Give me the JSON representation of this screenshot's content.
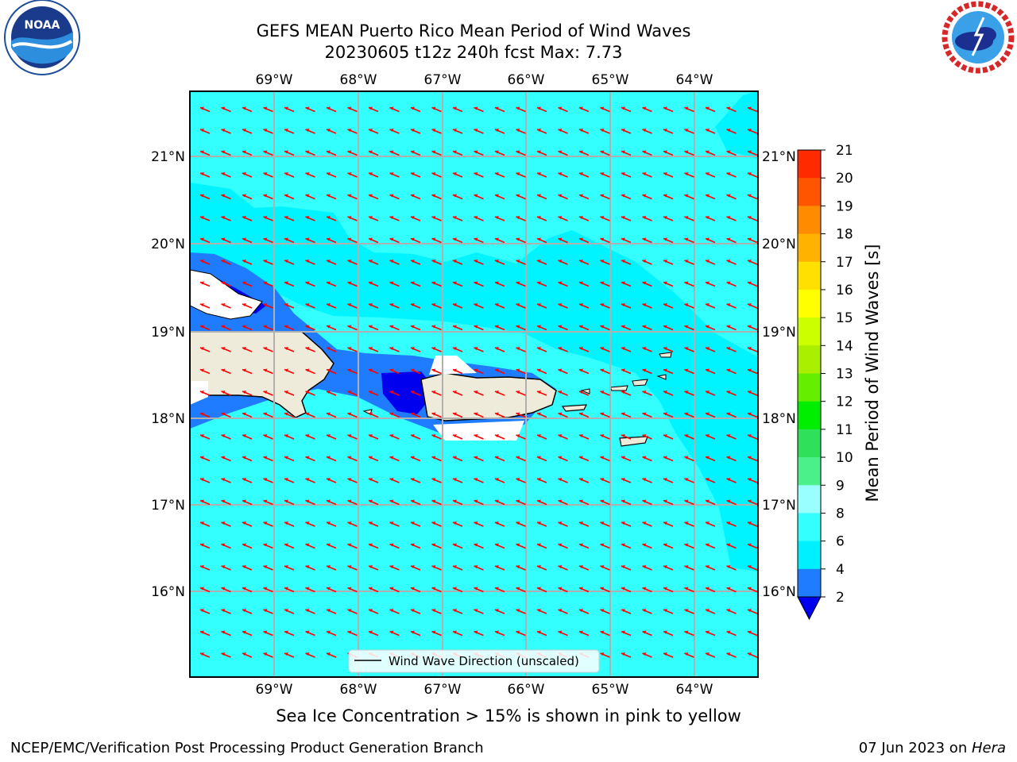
{
  "title_line1": "GEFS MEAN Puerto Rico Mean Period of Wind Waves",
  "title_line2": "20230605 t12z 240h fcst   Max: 7.73",
  "caption": "Sea Ice Concentration > 15% is shown in pink to yellow",
  "footer_left": "NCEP/EMC/Verification Post Processing Product Generation Branch",
  "footer_date": "07 Jun 2023 on ",
  "footer_host": "Hera",
  "logos": {
    "left": "noaa-logo",
    "right": "nws-logo"
  },
  "map": {
    "lon_ticks": [
      "69°W",
      "68°W",
      "67°W",
      "66°W",
      "65°W",
      "64°W"
    ],
    "lat_ticks": [
      "21°N",
      "20°N",
      "19°N",
      "18°N",
      "17°N",
      "16°N"
    ],
    "legend_label": "Wind Wave Direction (unscaled)",
    "arrow_color": "#ff0000",
    "ocean_color": "#33ffff",
    "land_color": "#efebdb"
  },
  "colorbar": {
    "label": "Mean Period of Wind Waves [s]",
    "ticks": [
      "2",
      "4",
      "6",
      "8",
      "9",
      "10",
      "11",
      "12",
      "13",
      "14",
      "15",
      "16",
      "17",
      "18",
      "19",
      "20",
      "21"
    ],
    "colors": [
      "#0000ee",
      "#1f7cff",
      "#00f0ff",
      "#33ffff",
      "#99ffff",
      "#4cf08a",
      "#2ee05a",
      "#00ee00",
      "#66ee00",
      "#aaee00",
      "#ccff00",
      "#ffff00",
      "#ffe000",
      "#ffb300",
      "#ff8c00",
      "#ff5500",
      "#ff2a00",
      "#ff0000"
    ],
    "under_color": "#0000ee"
  }
}
